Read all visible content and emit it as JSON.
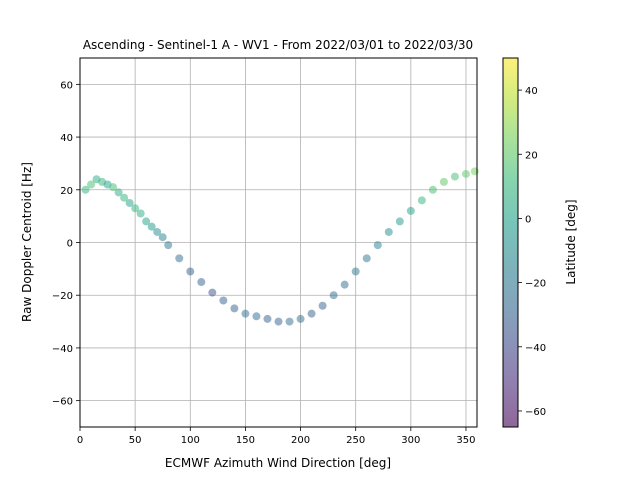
{
  "chart_data": {
    "type": "scatter",
    "title": "Ascending - Sentinel-1 A - WV1 - From 2022/03/01 to 2022/03/30",
    "xlabel": "ECMWF Azimuth Wind Direction [deg]",
    "ylabel": "Raw Doppler Centroid [Hz]",
    "xlim": [
      0,
      360
    ],
    "ylim": [
      -70,
      70
    ],
    "xticks": [
      0,
      50,
      100,
      150,
      200,
      250,
      300,
      350
    ],
    "yticks": [
      -60,
      -40,
      -20,
      0,
      20,
      40,
      60
    ],
    "grid": true,
    "point_alpha": 0.5,
    "colorbar": {
      "label": "Latitude [deg]",
      "colormap": "viridis",
      "range": [
        -65,
        50
      ],
      "ticks": [
        -60,
        -40,
        -20,
        0,
        20,
        40
      ],
      "colors": [
        "#440154",
        "#482878",
        "#3e4989",
        "#31688e",
        "#26828e",
        "#1f9e89",
        "#35b779",
        "#6ece58",
        "#b5de2b",
        "#fde725"
      ]
    },
    "series": [
      {
        "x": [
          5,
          10,
          15,
          20,
          25,
          30,
          35,
          40,
          45,
          50,
          55,
          60,
          65,
          70,
          75,
          80,
          90,
          100,
          110,
          120,
          130,
          140,
          150,
          160,
          170,
          180,
          190,
          200,
          210,
          220,
          230,
          240,
          250,
          260,
          270,
          280,
          290,
          300,
          310,
          320,
          330,
          340,
          350,
          358
        ],
        "y": [
          20,
          22,
          24,
          23,
          22,
          21,
          19,
          17,
          15,
          13,
          11,
          8,
          6,
          4,
          2,
          -1,
          -6,
          -11,
          -15,
          -19,
          -22,
          -25,
          -27,
          -28,
          -29,
          -30,
          -30,
          -29,
          -27,
          -24,
          -20,
          -16,
          -11,
          -6,
          -1,
          4,
          8,
          12,
          16,
          20,
          23,
          25,
          26,
          27
        ],
        "c": [
          10,
          15,
          5,
          10,
          0,
          15,
          5,
          10,
          0,
          10,
          5,
          0,
          -5,
          -10,
          -15,
          -20,
          -25,
          -30,
          -30,
          -35,
          -30,
          -30,
          -25,
          -25,
          -30,
          -30,
          -25,
          -25,
          -30,
          -30,
          -25,
          -25,
          -20,
          -20,
          -15,
          -10,
          -5,
          0,
          10,
          15,
          20,
          15,
          20,
          25
        ]
      }
    ]
  }
}
